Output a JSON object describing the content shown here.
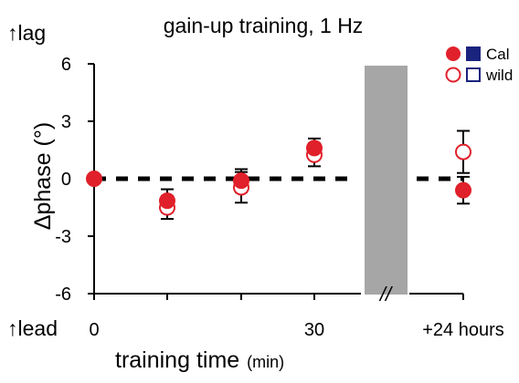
{
  "chart_data": {
    "type": "scatter",
    "title": "gain-up training, 1 Hz",
    "ylabel": "Δphase (°)",
    "xlabel": "training time",
    "xlabel_unit": "(min)",
    "y_top_note": "↑lag",
    "y_bottom_note": "↑lead",
    "ylim": [
      -6,
      6
    ],
    "y_ticks": [
      "6",
      "3",
      "0",
      "-3",
      "-6"
    ],
    "x_ticks": [
      "0",
      "30",
      "+24 hours"
    ],
    "axis_break_label": "//",
    "zero_reference_line": true,
    "legend_position": "top-right",
    "legend": [
      {
        "label": "Cal",
        "filled": true
      },
      {
        "label": "wild",
        "filled": false
      }
    ],
    "series": [
      {
        "name": "Cal",
        "marker": "filled-circle",
        "color": "#e0202a",
        "points": [
          {
            "x": "0",
            "y": 0.0,
            "err": 0.0
          },
          {
            "x": "10",
            "y": -1.15,
            "err": 0.6
          },
          {
            "x": "20",
            "y": -0.1,
            "err": 0.6
          },
          {
            "x": "30",
            "y": 1.6,
            "err": 0.5
          },
          {
            "x": "+24 hours",
            "y": -0.6,
            "err": 0.7
          }
        ]
      },
      {
        "name": "wild",
        "marker": "open-circle",
        "color": "#e0202a",
        "points": [
          {
            "x": "10",
            "y": -1.5,
            "err": 0.6
          },
          {
            "x": "20",
            "y": -0.45,
            "err": 0.8
          },
          {
            "x": "30",
            "y": 1.25,
            "err": 0.6
          },
          {
            "x": "+24 hours",
            "y": 1.4,
            "err": 1.1
          }
        ]
      }
    ],
    "colors": {
      "marker": "#e0202a",
      "legend_square": "#1a237e",
      "break_bar": "#a6a6a6"
    }
  }
}
